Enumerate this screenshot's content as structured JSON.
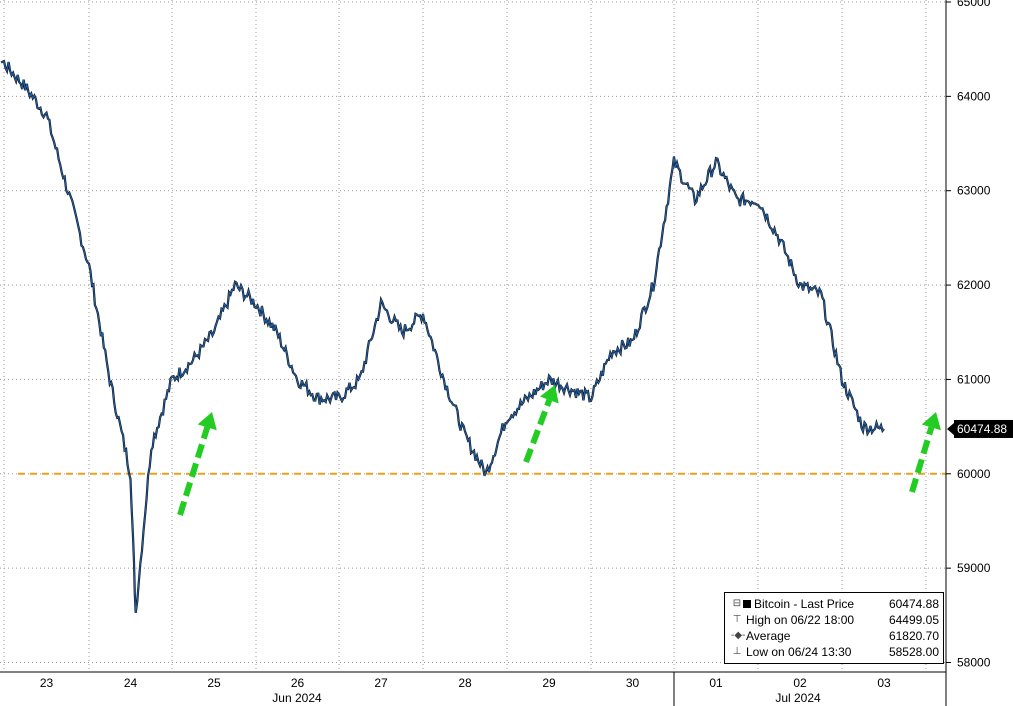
{
  "chart_data": {
    "type": "line",
    "title": "",
    "xlabel": "",
    "ylabel": "",
    "ylim": [
      57950,
      65000
    ],
    "yticks": [
      58000,
      59000,
      60000,
      61000,
      62000,
      63000,
      64000,
      65000
    ],
    "x_day_labels": [
      "23",
      "24",
      "25",
      "26",
      "27",
      "28",
      "29",
      "30",
      "01",
      "02",
      "03"
    ],
    "x_month_labels": [
      "Jun 2024",
      "Jul 2024"
    ],
    "series": [
      {
        "name": "Bitcoin - Last Price",
        "color": "#1f5fa8",
        "x": [
          "06/22 12:00",
          "06/22 18:00",
          "06/23 00:00",
          "06/23 06:00",
          "06/23 12:00",
          "06/23 18:00",
          "06/24 00:00",
          "06/24 06:00",
          "06/24 12:00",
          "06/24 13:30",
          "06/24 18:00",
          "06/25 00:00",
          "06/25 06:00",
          "06/25 12:00",
          "06/25 18:00",
          "06/26 00:00",
          "06/26 06:00",
          "06/26 12:00",
          "06/26 18:00",
          "06/27 00:00",
          "06/27 06:00",
          "06/27 12:00",
          "06/27 18:00",
          "06/28 00:00",
          "06/28 06:00",
          "06/28 12:00",
          "06/28 18:00",
          "06/29 00:00",
          "06/29 06:00",
          "06/29 12:00",
          "06/29 18:00",
          "06/30 00:00",
          "06/30 06:00",
          "06/30 12:00",
          "06/30 18:00",
          "07/01 00:00",
          "07/01 06:00",
          "07/01 12:00",
          "07/01 18:00",
          "07/02 00:00",
          "07/02 06:00",
          "07/02 12:00",
          "07/02 18:00",
          "07/03 00:00",
          "07/03 06:00",
          "07/03 12:00"
        ],
        "y": [
          64300,
          64499,
          64350,
          64100,
          63800,
          63000,
          62200,
          61000,
          60000,
          58528,
          60300,
          61000,
          61200,
          61500,
          62000,
          61800,
          61500,
          61000,
          60800,
          60800,
          61000,
          61800,
          61500,
          61700,
          61000,
          60400,
          60000,
          60600,
          60800,
          61000,
          60900,
          60800,
          61300,
          61400,
          62000,
          63300,
          62900,
          63300,
          62900,
          62900,
          62500,
          62000,
          61900,
          61000,
          60500,
          60474.88
        ]
      }
    ],
    "reference_line": {
      "value": 60000,
      "color": "#e8a317"
    },
    "last_price": {
      "value": 60474.88,
      "label": "60474.88"
    },
    "arrows_color": "#22cc22",
    "legend": {
      "rows": [
        {
          "name": "Bitcoin - Last Price",
          "value": "60474.88"
        },
        {
          "name": "High on 06/22 18:00",
          "value": "64499.05"
        },
        {
          "name": "Average",
          "value": "61820.70"
        },
        {
          "name": "Low on 06/24 13:30",
          "value": "58528.00"
        }
      ]
    }
  }
}
